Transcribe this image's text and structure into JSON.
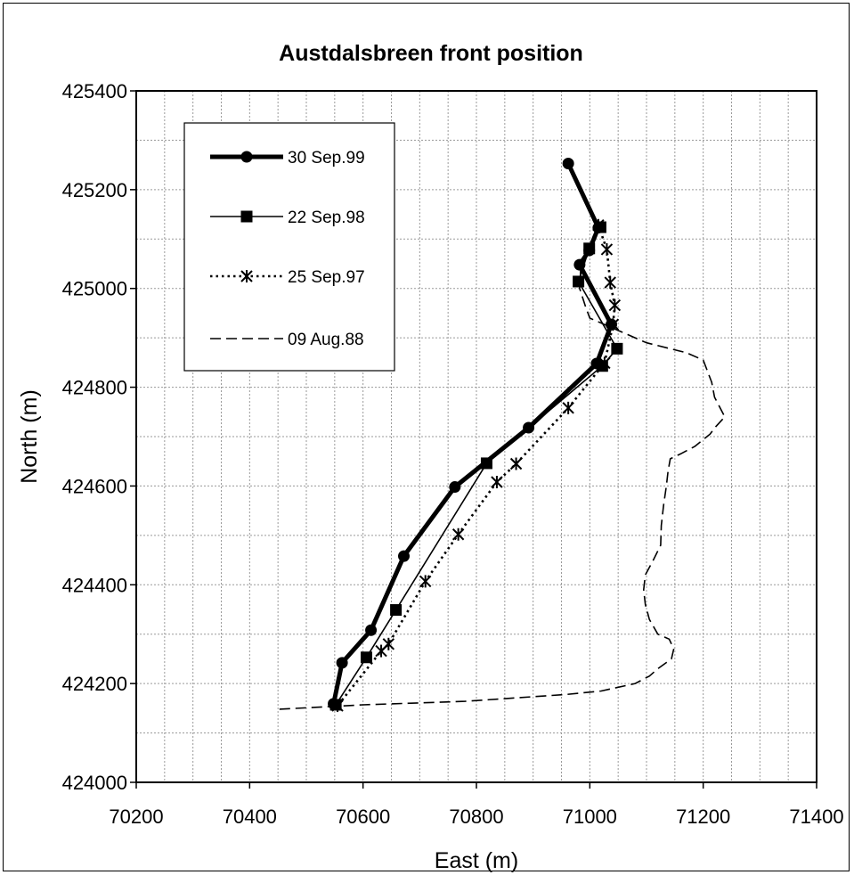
{
  "chart_data": {
    "type": "line",
    "title": "Austdalsbreen front position",
    "xlabel": "East (m)",
    "ylabel": "North (m)",
    "xlim": [
      70200,
      71400
    ],
    "ylim": [
      424000,
      425400
    ],
    "xticks": [
      70200,
      70400,
      70600,
      70800,
      71000,
      71200,
      71400
    ],
    "yticks": [
      424000,
      424200,
      424400,
      424600,
      424800,
      425000,
      425200,
      425400
    ],
    "minor_x_step": 50,
    "minor_y_step": 100,
    "grid": true,
    "legend_position": "top-left",
    "series": [
      {
        "name": "30 Sep.99",
        "style": "thick-solid",
        "marker": "circle",
        "color": "#000000",
        "x": [
          70962,
          71015,
          70999,
          70982,
          71038,
          71012,
          70892,
          70762,
          70672,
          70614,
          70563,
          70548
        ],
        "y": [
          425253,
          425123,
          425077,
          425048,
          424927,
          424848,
          424718,
          424598,
          424458,
          424308,
          424242,
          424159
        ]
      },
      {
        "name": "22 Sep.98",
        "style": "thin-solid",
        "marker": "square",
        "color": "#000000",
        "x": [
          71019,
          70999,
          70980,
          71048,
          71022,
          70818,
          70658,
          70606,
          70552
        ],
        "y": [
          425124,
          425081,
          425014,
          424878,
          424843,
          424646,
          424349,
          424253,
          424157
        ]
      },
      {
        "name": "25 Sep.97",
        "style": "dotted",
        "marker": "star",
        "color": "#000000",
        "x": [
          71015,
          71030,
          71036,
          71044,
          71041,
          71026,
          70962,
          70870,
          70836,
          70768,
          70710,
          70645,
          70632,
          70555
        ],
        "y": [
          425128,
          425079,
          425012,
          424966,
          424927,
          424849,
          424758,
          424645,
          424608,
          424502,
          424407,
          424280,
          424266,
          424155
        ]
      },
      {
        "name": "09 Aug.88",
        "style": "dashed",
        "marker": "none",
        "color": "#000000",
        "x": [
          71007,
          70984,
          70982,
          70992,
          71000,
          71100,
          71170,
          71200,
          71215,
          71220,
          71238,
          71222,
          71212,
          71185,
          71160,
          71142,
          71138,
          71135,
          71130,
          71126,
          71125,
          71112,
          71098,
          71095,
          71098,
          71105,
          71120,
          71140,
          71148,
          71144,
          71120,
          71105,
          71080,
          71020,
          70960,
          70780,
          70600,
          70520,
          70450
        ],
        "y": [
          425108,
          425040,
          425000,
          424965,
          424940,
          424890,
          424870,
          424855,
          424810,
          424780,
          424740,
          424720,
          424705,
          424680,
          424665,
          424655,
          424630,
          424600,
          424560,
          424520,
          424480,
          424450,
          424420,
          424390,
          424360,
          424330,
          424300,
          424290,
          424270,
          424250,
          424230,
          424215,
          424200,
          424185,
          424178,
          424164,
          424157,
          424152,
          424148
        ]
      }
    ]
  }
}
